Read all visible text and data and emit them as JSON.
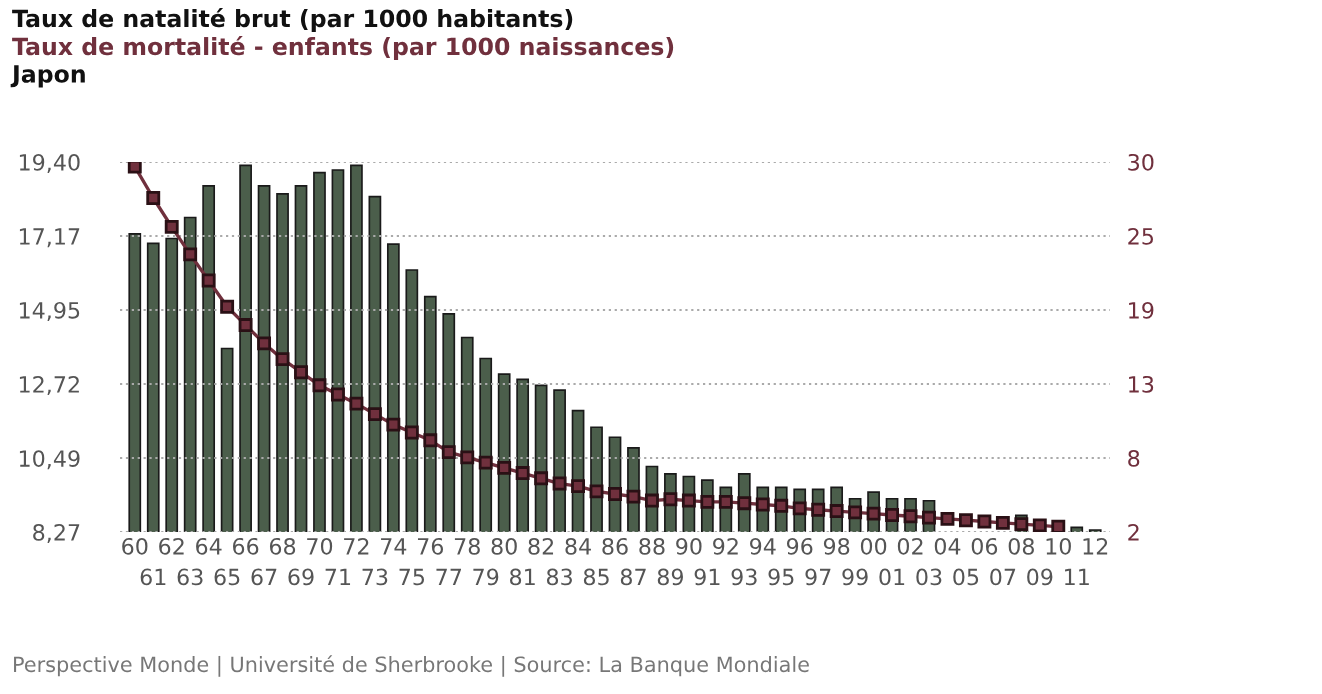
{
  "chart_data": {
    "type": "bar",
    "title": "Japon",
    "categories": [
      "60",
      "61",
      "62",
      "63",
      "64",
      "65",
      "66",
      "67",
      "68",
      "69",
      "70",
      "71",
      "72",
      "73",
      "74",
      "75",
      "76",
      "77",
      "78",
      "79",
      "80",
      "81",
      "82",
      "83",
      "84",
      "85",
      "86",
      "87",
      "88",
      "89",
      "90",
      "91",
      "92",
      "93",
      "94",
      "95",
      "96",
      "97",
      "98",
      "99",
      "00",
      "01",
      "02",
      "03",
      "04",
      "05",
      "06",
      "07",
      "08",
      "09",
      "10",
      "11",
      "12"
    ],
    "series": [
      {
        "name": "Taux de natalité brut (par 1000 habitants)",
        "color": "#4b5e4b",
        "values": [
          17.24,
          16.95,
          17.1,
          17.73,
          18.68,
          13.79,
          19.3,
          18.68,
          18.44,
          18.68,
          19.08,
          19.16,
          19.3,
          18.36,
          16.93,
          16.15,
          15.35,
          14.83,
          14.12,
          13.49,
          13.02,
          12.86,
          12.68,
          12.54,
          11.92,
          11.42,
          11.12,
          10.8,
          10.24,
          10.02,
          9.94,
          9.83,
          9.61,
          10.02,
          9.61,
          9.61,
          9.55,
          9.55,
          9.61,
          9.27,
          9.47,
          9.27,
          9.27,
          9.21,
          null,
          null,
          null,
          null,
          8.77,
          null,
          null,
          8.41,
          8.33
        ]
      },
      {
        "name": "Taux de mortalité - enfants (par 1000 naissances)",
        "type": "line",
        "axis": "y2",
        "color": "#70303d",
        "marker": "square",
        "values": [
          29.9,
          27.5,
          25.3,
          23.2,
          21.2,
          19.2,
          17.8,
          16.4,
          15.2,
          14.2,
          13.2,
          12.5,
          11.8,
          11.0,
          10.2,
          9.6,
          9.0,
          8.1,
          7.7,
          7.3,
          6.9,
          6.5,
          6.1,
          5.7,
          5.5,
          5.1,
          4.9,
          4.7,
          4.4,
          4.5,
          4.4,
          4.3,
          4.3,
          4.2,
          4.1,
          4.0,
          3.8,
          3.7,
          3.6,
          3.5,
          3.4,
          3.3,
          3.2,
          3.1,
          3.0,
          2.9,
          2.8,
          2.7,
          2.6,
          2.5,
          2.4,
          null,
          null
        ]
      }
    ],
    "ylim": [
      8.27,
      19.4
    ],
    "yticks": [
      {
        "value": 8.27,
        "label": "8,27"
      },
      {
        "value": 10.49,
        "label": "10,49"
      },
      {
        "value": 12.72,
        "label": "12,72"
      },
      {
        "value": 14.95,
        "label": "14,95"
      },
      {
        "value": 17.17,
        "label": "17,17"
      },
      {
        "value": 19.4,
        "label": "19,40"
      }
    ],
    "y2lim": [
      2,
      30.25
    ],
    "y2ticks": [
      2,
      {
        "value": 7.65,
        "label": "8"
      },
      {
        "value": 13.3,
        "label": "13"
      },
      {
        "value": 18.95,
        "label": "19"
      },
      {
        "value": 24.6,
        "label": "25"
      },
      {
        "value": 30.25,
        "label": "30"
      }
    ],
    "grid": "y",
    "annotations": [
      "Perspective Monde | Université de Sherbrooke | Source: La Banque Mondiale"
    ]
  }
}
